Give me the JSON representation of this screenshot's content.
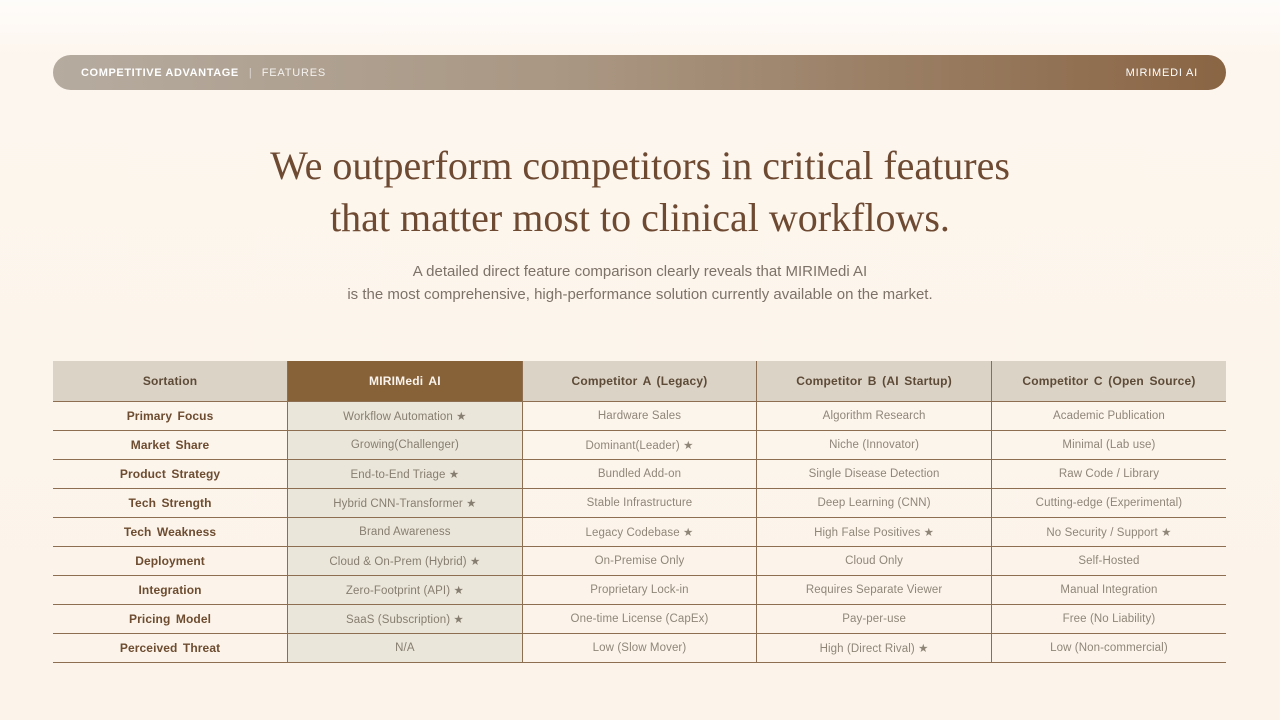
{
  "topbar": {
    "left_primary": "COMPETITIVE ADVANTAGE",
    "separator": "|",
    "left_secondary": "FEATURES",
    "right_brand": "MIRIMEDI AI"
  },
  "title": {
    "line1": "We outperform competitors in critical features",
    "line2": "that matter most to clinical workflows."
  },
  "subtitle": {
    "line1": "A detailed direct feature comparison clearly reveals that MIRIMedi AI",
    "line2": "is the most comprehensive, high-performance solution currently available on the market."
  },
  "table": {
    "columns": [
      "Sortation",
      "MIRIMedi AI",
      "Competitor A (Legacy)",
      "Competitor B (AI Startup)",
      "Competitor C (Open Source)"
    ],
    "rows": [
      {
        "label": "Primary Focus",
        "cells": [
          "Workflow Automation ★",
          "Hardware Sales",
          "Algorithm Research",
          "Academic Publication"
        ]
      },
      {
        "label": "Market Share",
        "cells": [
          "Growing(Challenger)",
          "Dominant(Leader) ★",
          "Niche (Innovator)",
          "Minimal (Lab use)"
        ]
      },
      {
        "label": "Product Strategy",
        "cells": [
          "End-to-End Triage ★",
          "Bundled Add-on",
          "Single Disease Detection",
          "Raw Code / Library"
        ]
      },
      {
        "label": "Tech Strength",
        "cells": [
          "Hybrid CNN-Transformer ★",
          "Stable Infrastructure",
          "Deep Learning (CNN)",
          "Cutting-edge (Experimental)"
        ]
      },
      {
        "label": "Tech Weakness",
        "cells": [
          "Brand Awareness",
          "Legacy Codebase ★",
          "High False Positives ★",
          "No Security / Support ★"
        ]
      },
      {
        "label": "Deployment",
        "cells": [
          "Cloud & On-Prem (Hybrid) ★",
          "On-Premise Only",
          "Cloud Only",
          "Self-Hosted"
        ]
      },
      {
        "label": "Integration",
        "cells": [
          "Zero-Footprint (API) ★",
          "Proprietary Lock-in",
          "Requires Separate Viewer",
          "Manual Integration"
        ]
      },
      {
        "label": "Pricing Model",
        "cells": [
          "SaaS (Subscription) ★",
          "One-time License (CapEx)",
          "Pay-per-use",
          "Free (No Liability)"
        ]
      },
      {
        "label": "Perceived Threat",
        "cells": [
          "N/A",
          "Low (Slow Mover)",
          "High (Direct Rival) ★",
          "Low (Non-commercial)"
        ]
      }
    ]
  },
  "colors": {
    "page_background": "#fdf6ee",
    "bar_gradient_left": "#b5ab9f",
    "bar_gradient_right": "#8a6544",
    "title_text": "#6e4a33",
    "subtitle_text": "#7d7268",
    "table_border": "#8d6e50",
    "header_light_bg": "#dbd3c6",
    "header_accent_bg": "#876239",
    "mirimedi_column_bg": "#ebe6da",
    "row_label_text": "#6d4c30"
  }
}
